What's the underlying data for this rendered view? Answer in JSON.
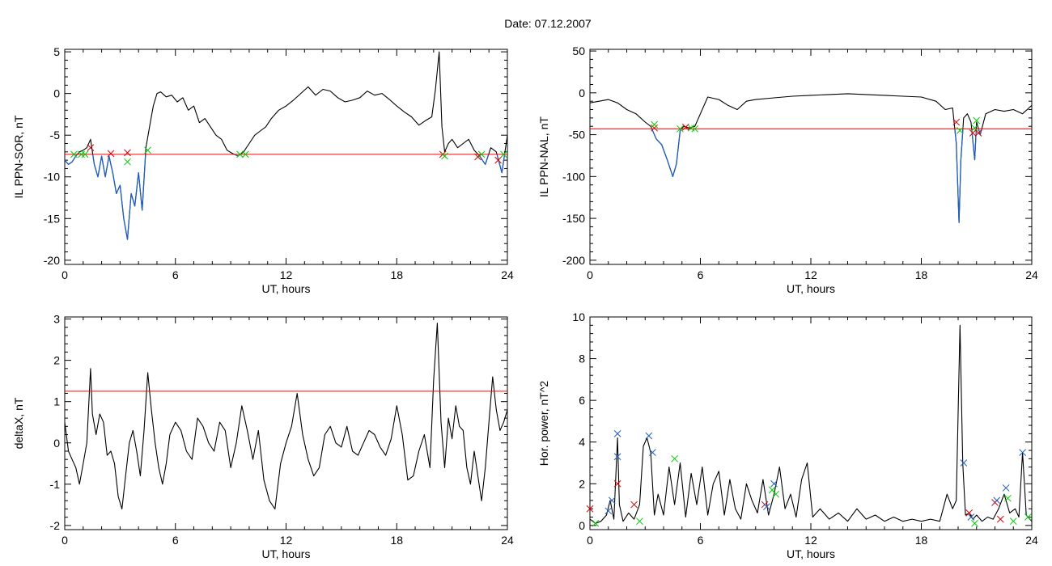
{
  "header": {
    "title": "Date:  07.12.2007"
  },
  "chart_data": [
    {
      "type": "line",
      "xlabel": "UT, hours",
      "ylabel": "IL PPN-SOR, nT",
      "xlim": [
        0,
        24
      ],
      "ylim": [
        -20.5,
        5.3
      ],
      "xticks": [
        0,
        6,
        12,
        18,
        24
      ],
      "yticks": [
        5,
        0,
        -5,
        -10,
        -15,
        -20
      ],
      "threshold": -7.3,
      "colors": {
        "line": "#000000",
        "below": "#1f5fbf",
        "threshold": "#ff0000"
      },
      "series": [
        {
          "color": "#000000",
          "x": [
            0,
            0.2,
            0.4,
            0.6,
            0.8,
            1.0,
            1.2,
            1.4,
            1.6,
            1.8,
            2.0,
            2.2,
            2.4,
            2.6,
            2.8,
            3.0,
            3.2,
            3.4,
            3.6,
            3.8,
            4.0,
            4.2,
            4.4,
            4.6,
            4.8,
            5.0,
            5.2,
            5.5,
            5.8,
            6.1,
            6.4,
            6.7,
            7.0,
            7.3,
            7.6,
            7.9,
            8.2,
            8.5,
            8.8,
            9.1,
            9.4,
            9.7,
            10.0,
            10.3,
            10.6,
            10.9,
            11.2,
            11.6,
            12.0,
            12.4,
            12.8,
            13.2,
            13.6,
            14.0,
            14.4,
            14.8,
            15.2,
            15.6,
            16.0,
            16.4,
            16.8,
            17.2,
            17.6,
            18.0,
            18.4,
            18.8,
            19.2,
            19.6,
            19.9,
            20.1,
            20.3,
            20.45,
            20.6,
            20.8,
            21.0,
            21.3,
            21.6,
            21.9,
            22.2,
            22.5,
            22.8,
            23.1,
            23.4,
            23.7,
            24.0
          ],
          "y": [
            -8.0,
            -8.5,
            -8.2,
            -7.5,
            -7.0,
            -6.8,
            -6.5,
            -5.5,
            -8.5,
            -10.0,
            -7.5,
            -10.0,
            -7.5,
            -9.5,
            -12.0,
            -11.0,
            -15.0,
            -17.5,
            -12.0,
            -13.5,
            -9.5,
            -14.0,
            -6.5,
            -4.0,
            -1.5,
            0.0,
            0.2,
            -0.4,
            -0.2,
            -1.0,
            -0.5,
            -2.0,
            -1.5,
            -3.5,
            -3.0,
            -4.0,
            -5.0,
            -5.5,
            -6.8,
            -7.2,
            -7.5,
            -7.0,
            -6.0,
            -5.0,
            -4.5,
            -4.0,
            -3.0,
            -2.0,
            -1.5,
            -0.8,
            0.0,
            0.8,
            -0.2,
            0.5,
            0.3,
            -0.5,
            -1.0,
            -0.8,
            -0.5,
            0.3,
            -0.2,
            0.0,
            -0.7,
            -1.5,
            -2.2,
            -2.8,
            -3.8,
            -3.2,
            -2.8,
            0.5,
            5.0,
            -4.0,
            -7.0,
            -6.0,
            -5.5,
            -6.5,
            -6.0,
            -5.5,
            -6.8,
            -7.5,
            -8.5,
            -6.5,
            -7.0,
            -9.5,
            -5.0
          ]
        }
      ],
      "markers": [
        {
          "x": 0.5,
          "y": -7.3,
          "color": "#00cc00"
        },
        {
          "x": 0.9,
          "y": -7.3,
          "color": "#00cc00"
        },
        {
          "x": 1.1,
          "y": -7.3,
          "color": "#00cc00"
        },
        {
          "x": 1.4,
          "y": -6.5,
          "color": "#dd0000"
        },
        {
          "x": 2.5,
          "y": -7.2,
          "color": "#dd0000"
        },
        {
          "x": 3.4,
          "y": -7.1,
          "color": "#dd0000"
        },
        {
          "x": 3.4,
          "y": -8.2,
          "color": "#00cc00"
        },
        {
          "x": 4.5,
          "y": -6.8,
          "color": "#00cc00"
        },
        {
          "x": 9.5,
          "y": -7.3,
          "color": "#00cc00"
        },
        {
          "x": 9.8,
          "y": -7.3,
          "color": "#00cc00"
        },
        {
          "x": 20.5,
          "y": -7.3,
          "color": "#dd0000"
        },
        {
          "x": 20.6,
          "y": -7.5,
          "color": "#00cc00"
        },
        {
          "x": 22.4,
          "y": -7.6,
          "color": "#dd0000"
        },
        {
          "x": 22.6,
          "y": -7.3,
          "color": "#00cc00"
        },
        {
          "x": 23.5,
          "y": -8.0,
          "color": "#dd0000"
        },
        {
          "x": 23.8,
          "y": -7.3,
          "color": "#00cc00"
        }
      ]
    },
    {
      "type": "line",
      "xlabel": "UT, hours",
      "ylabel": "IL PPN-NAL, nT",
      "xlim": [
        0,
        24
      ],
      "ylim": [
        -205,
        52
      ],
      "xticks": [
        0,
        6,
        12,
        18,
        24
      ],
      "yticks": [
        50,
        0,
        -50,
        -100,
        -150,
        -200
      ],
      "threshold": -43,
      "colors": {
        "line": "#000000",
        "below": "#1f5fbf",
        "threshold": "#ff0000"
      },
      "series": [
        {
          "color": "#000000",
          "x": [
            0,
            0.5,
            1.0,
            1.5,
            2.0,
            2.5,
            3.0,
            3.3,
            3.6,
            3.9,
            4.2,
            4.5,
            4.7,
            4.9,
            5.1,
            5.4,
            5.7,
            6.0,
            6.4,
            7.0,
            7.5,
            8.0,
            8.5,
            9.0,
            10.0,
            11.0,
            12.0,
            13.0,
            14.0,
            15.0,
            16.0,
            17.0,
            18.0,
            18.8,
            19.3,
            19.7,
            19.9,
            20.05,
            20.15,
            20.3,
            20.5,
            20.7,
            20.9,
            21.0,
            21.2,
            21.5,
            22.0,
            22.5,
            23.0,
            23.5,
            24.0
          ],
          "y": [
            -12,
            -10,
            -8,
            -12,
            -20,
            -25,
            -35,
            -40,
            -55,
            -62,
            -80,
            -100,
            -85,
            -45,
            -40,
            -42,
            -40,
            -25,
            -5,
            -8,
            -15,
            -20,
            -10,
            -8,
            -6,
            -4,
            -3,
            -2,
            -1,
            -2,
            -3,
            -4,
            -5,
            -10,
            -20,
            -18,
            -60,
            -155,
            -80,
            -30,
            -25,
            -35,
            -80,
            -35,
            -50,
            -25,
            -20,
            -22,
            -20,
            -25,
            -15
          ]
        }
      ],
      "markers": [
        {
          "x": 3.5,
          "y": -42,
          "color": "#dd0000"
        },
        {
          "x": 3.5,
          "y": -38,
          "color": "#00cc00"
        },
        {
          "x": 4.9,
          "y": -43,
          "color": "#00cc00"
        },
        {
          "x": 5.2,
          "y": -41,
          "color": "#dd0000"
        },
        {
          "x": 5.5,
          "y": -42,
          "color": "#00cc00"
        },
        {
          "x": 5.7,
          "y": -43,
          "color": "#00cc00"
        },
        {
          "x": 19.9,
          "y": -35,
          "color": "#dd0000"
        },
        {
          "x": 20.1,
          "y": -45,
          "color": "#00cc00"
        },
        {
          "x": 20.8,
          "y": -48,
          "color": "#dd0000"
        },
        {
          "x": 20.9,
          "y": -42,
          "color": "#00cc00"
        },
        {
          "x": 21.1,
          "y": -48,
          "color": "#dd0000"
        },
        {
          "x": 21.0,
          "y": -33,
          "color": "#00cc00"
        }
      ]
    },
    {
      "type": "line",
      "xlabel": "UT, hours",
      "ylabel": "deltaX, nT",
      "xlim": [
        0,
        24
      ],
      "ylim": [
        -2.1,
        3.05
      ],
      "xticks": [
        0,
        6,
        12,
        18,
        24
      ],
      "yticks": [
        3,
        2,
        1,
        0,
        -1,
        -2
      ],
      "threshold": 1.25,
      "colors": {
        "line": "#000000",
        "threshold": "#ff0000"
      },
      "series": [
        {
          "color": "#000000",
          "x": [
            0,
            0.2,
            0.4,
            0.6,
            0.8,
            1.0,
            1.2,
            1.4,
            1.5,
            1.7,
            1.9,
            2.1,
            2.3,
            2.5,
            2.7,
            2.9,
            3.1,
            3.3,
            3.5,
            3.7,
            3.9,
            4.1,
            4.3,
            4.5,
            4.7,
            4.9,
            5.1,
            5.3,
            5.5,
            5.7,
            6.0,
            6.3,
            6.6,
            6.9,
            7.2,
            7.5,
            7.8,
            8.1,
            8.4,
            8.7,
            9.0,
            9.3,
            9.6,
            9.9,
            10.2,
            10.5,
            10.8,
            11.1,
            11.4,
            11.7,
            12.0,
            12.3,
            12.6,
            12.9,
            13.2,
            13.5,
            13.8,
            14.1,
            14.4,
            14.7,
            15.0,
            15.3,
            15.6,
            15.9,
            16.2,
            16.5,
            16.8,
            17.1,
            17.4,
            17.7,
            18.0,
            18.3,
            18.6,
            18.9,
            19.2,
            19.5,
            19.8,
            20.0,
            20.2,
            20.4,
            20.6,
            20.8,
            21.0,
            21.2,
            21.4,
            21.6,
            21.8,
            22.0,
            22.2,
            22.4,
            22.6,
            22.8,
            23.0,
            23.2,
            23.4,
            23.6,
            23.8,
            24.0
          ],
          "y": [
            0.5,
            -0.2,
            -0.4,
            -0.6,
            -1.0,
            -0.5,
            0.0,
            1.8,
            0.7,
            0.2,
            0.7,
            0.5,
            -0.3,
            -0.2,
            -0.5,
            -1.3,
            -1.6,
            -0.8,
            0.0,
            0.3,
            -0.2,
            -0.8,
            0.3,
            1.7,
            0.8,
            0.0,
            -0.6,
            -1.0,
            -0.5,
            0.2,
            0.5,
            0.3,
            -0.2,
            -0.4,
            0.6,
            0.4,
            0.0,
            -0.2,
            0.5,
            0.3,
            -0.6,
            0.0,
            0.9,
            0.3,
            -0.4,
            0.3,
            -0.9,
            -1.4,
            -1.6,
            -0.5,
            0.0,
            0.4,
            1.2,
            0.2,
            -0.4,
            -0.8,
            -0.6,
            0.2,
            0.4,
            0.0,
            -0.1,
            0.4,
            -0.2,
            -0.3,
            0.0,
            0.3,
            0.2,
            -0.1,
            -0.3,
            0.1,
            0.9,
            0.2,
            -0.9,
            -0.8,
            -0.2,
            0.2,
            -0.6,
            1.5,
            2.9,
            0.5,
            -0.6,
            0.6,
            0.1,
            0.9,
            0.4,
            0.3,
            -0.6,
            -1.0,
            -0.2,
            -0.8,
            -1.4,
            -0.6,
            0.5,
            1.6,
            0.8,
            0.3,
            0.5,
            0.8
          ]
        }
      ],
      "markers": []
    },
    {
      "type": "line",
      "xlabel": "UT, hours",
      "ylabel": "Hor. power, nT^2",
      "xlim": [
        0,
        24
      ],
      "ylim": [
        -0.2,
        10
      ],
      "xticks": [
        0,
        6,
        12,
        18,
        24
      ],
      "yticks": [
        10,
        8,
        6,
        4,
        2,
        0
      ],
      "colors": {
        "line": "#000000"
      },
      "series": [
        {
          "color": "#000000",
          "x": [
            0,
            0.3,
            0.6,
            0.9,
            1.1,
            1.3,
            1.5,
            1.6,
            1.8,
            2.1,
            2.4,
            2.7,
            2.9,
            3.1,
            3.3,
            3.5,
            3.7,
            4.0,
            4.3,
            4.6,
            4.9,
            5.2,
            5.5,
            5.8,
            6.1,
            6.4,
            6.7,
            7.0,
            7.3,
            7.6,
            7.9,
            8.2,
            8.5,
            8.8,
            9.1,
            9.4,
            9.7,
            10.0,
            10.3,
            10.6,
            10.9,
            11.2,
            11.5,
            11.8,
            12.1,
            12.5,
            13.0,
            13.5,
            14.0,
            14.5,
            15.0,
            15.5,
            16.0,
            16.5,
            17.0,
            17.5,
            18.0,
            18.5,
            19.0,
            19.4,
            19.7,
            19.9,
            20.1,
            20.25,
            20.4,
            20.6,
            20.8,
            21.0,
            21.3,
            21.6,
            21.9,
            22.2,
            22.5,
            22.8,
            23.1,
            23.3,
            23.5,
            23.7,
            24.0
          ],
          "y": [
            0.3,
            0.1,
            0.2,
            0.5,
            1.2,
            0.3,
            4.2,
            1.0,
            0.2,
            0.6,
            0.3,
            1.0,
            3.8,
            4.2,
            3.5,
            0.5,
            1.5,
            0.5,
            2.8,
            1.0,
            3.0,
            0.4,
            2.5,
            1.0,
            2.8,
            0.5,
            2.0,
            2.6,
            0.5,
            2.2,
            0.8,
            0.3,
            2.0,
            1.2,
            0.6,
            2.2,
            0.5,
            1.5,
            2.8,
            0.8,
            1.5,
            0.4,
            2.2,
            3.0,
            0.4,
            0.8,
            0.3,
            0.6,
            0.2,
            0.8,
            0.3,
            0.5,
            0.2,
            0.4,
            0.2,
            0.3,
            0.2,
            0.3,
            0.2,
            1.5,
            0.8,
            1.2,
            9.6,
            3.0,
            0.5,
            0.6,
            0.3,
            0.5,
            0.2,
            0.4,
            0.3,
            0.8,
            1.5,
            0.6,
            0.8,
            0.4,
            3.5,
            0.5,
            0.2
          ]
        }
      ],
      "markers": [
        {
          "x": 0.0,
          "y": 0.8,
          "color": "#dd0000"
        },
        {
          "x": 0.3,
          "y": 0.1,
          "color": "#00cc00"
        },
        {
          "x": 1.0,
          "y": 0.7,
          "color": "#1f5fbf"
        },
        {
          "x": 1.2,
          "y": 1.2,
          "color": "#1f5fbf"
        },
        {
          "x": 1.5,
          "y": 4.4,
          "color": "#1f5fbf"
        },
        {
          "x": 1.5,
          "y": 3.3,
          "color": "#1f5fbf"
        },
        {
          "x": 1.5,
          "y": 2.0,
          "color": "#dd0000"
        },
        {
          "x": 2.4,
          "y": 1.0,
          "color": "#dd0000"
        },
        {
          "x": 2.7,
          "y": 0.2,
          "color": "#00cc00"
        },
        {
          "x": 3.2,
          "y": 4.3,
          "color": "#1f5fbf"
        },
        {
          "x": 3.4,
          "y": 3.5,
          "color": "#1f5fbf"
        },
        {
          "x": 4.6,
          "y": 3.2,
          "color": "#00cc00"
        },
        {
          "x": 9.5,
          "y": 1.0,
          "color": "#dd0000"
        },
        {
          "x": 9.6,
          "y": 0.9,
          "color": "#1f5fbf"
        },
        {
          "x": 9.9,
          "y": 1.7,
          "color": "#00cc00"
        },
        {
          "x": 10.0,
          "y": 2.0,
          "color": "#1f5fbf"
        },
        {
          "x": 10.1,
          "y": 1.5,
          "color": "#00cc00"
        },
        {
          "x": 20.3,
          "y": 3.0,
          "color": "#1f5fbf"
        },
        {
          "x": 20.6,
          "y": 0.6,
          "color": "#dd0000"
        },
        {
          "x": 20.7,
          "y": 0.4,
          "color": "#1f5fbf"
        },
        {
          "x": 20.9,
          "y": 0.1,
          "color": "#00cc00"
        },
        {
          "x": 22.0,
          "y": 1.1,
          "color": "#dd0000"
        },
        {
          "x": 22.1,
          "y": 1.2,
          "color": "#1f5fbf"
        },
        {
          "x": 22.3,
          "y": 0.3,
          "color": "#dd0000"
        },
        {
          "x": 22.6,
          "y": 1.8,
          "color": "#1f5fbf"
        },
        {
          "x": 22.7,
          "y": 1.3,
          "color": "#00cc00"
        },
        {
          "x": 23.0,
          "y": 0.2,
          "color": "#00cc00"
        },
        {
          "x": 23.5,
          "y": 3.5,
          "color": "#1f5fbf"
        },
        {
          "x": 23.8,
          "y": 0.4,
          "color": "#00cc00"
        }
      ]
    }
  ]
}
